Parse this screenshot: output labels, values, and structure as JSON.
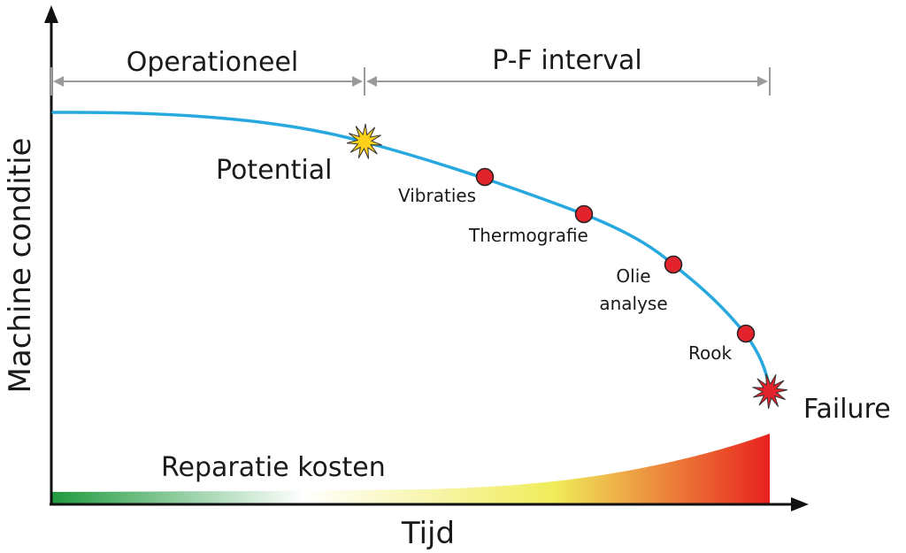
{
  "axes": {
    "y_label": "Machine conditie",
    "x_label": "Tijd"
  },
  "phases": {
    "operational": "Operationeel",
    "pf_interval": "P-F interval"
  },
  "points": {
    "potential": "Potential",
    "failure": "Failure"
  },
  "indicators": [
    {
      "label": "Vibraties"
    },
    {
      "label": "Thermografie"
    },
    {
      "label": "Olie",
      "label2": "analyse"
    },
    {
      "label": "Rook"
    }
  ],
  "cost": {
    "label": "Reparatie kosten"
  },
  "colors": {
    "curve": "#27a9df",
    "indicator_dot": "#e3232b",
    "potential_star": "#ffd11a",
    "failure_star": "#e3232b",
    "cost_start": "#1f9a3e",
    "cost_mid": "#f0ec5a",
    "cost_end": "#e8221e",
    "dimension_line": "#9a9a9a"
  }
}
